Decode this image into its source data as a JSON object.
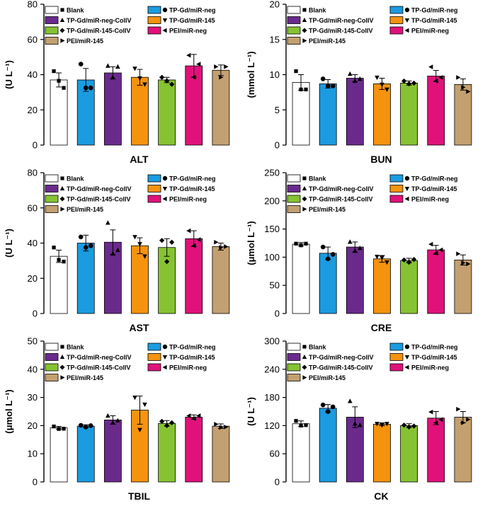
{
  "series_colors": {
    "Blank": "#ffffff",
    "TP-Gd/miR-neg": "#1b9be0",
    "TP-Gd/miR-neg-CollV": "#6a2a8c",
    "TP-Gd/miR-145": "#f5930f",
    "TP-Gd/miR-145-CollV": "#86c332",
    "PEI/miR-neg": "#e0127a",
    "PEI/miR-145": "#c4a070"
  },
  "legend_order": [
    "Blank",
    "TP-Gd/miR-neg-CollV",
    "TP-Gd/miR-145-CollV",
    "PEI/miR-145",
    "TP-Gd/miR-neg",
    "TP-Gd/miR-145",
    "PEI/miR-neg"
  ],
  "legend_labels": {
    "Blank": "Blank",
    "TP-Gd/miR-neg": "TP-Gd/miR-neg",
    "TP-Gd/miR-neg-CollV": "TP-Gd/miR-neg-CollV",
    "TP-Gd/miR-145": "TP-Gd/miR-145",
    "TP-Gd/miR-145-CollV": "TP-Gd/miR-145-CollV",
    "PEI/miR-neg": "PEI/miR-neg",
    "PEI/miR-145": "PEI/miR-145"
  },
  "chart_data": [
    {
      "type": "bar",
      "xlabel": "ALT",
      "ylabel": "(U L⁻¹)",
      "ylim": [
        0,
        80
      ],
      "yticks": [
        0,
        20,
        40,
        60,
        80
      ],
      "categories": [
        "Blank",
        "TP-Gd/miR-neg",
        "TP-Gd/miR-neg-CollV",
        "TP-Gd/miR-145",
        "TP-Gd/miR-145-CollV",
        "PEI/miR-neg",
        "PEI/miR-145"
      ],
      "values": [
        37,
        37,
        41,
        38.5,
        37,
        45,
        42.5
      ],
      "errors": [
        4,
        6.5,
        3.5,
        4.5,
        1.5,
        6.5,
        3
      ],
      "points": [
        [
          42,
          36.5,
          32.5
        ],
        [
          46,
          32.5,
          32.5
        ],
        [
          45,
          38.5,
          44.5
        ],
        [
          43.5,
          38,
          34.5
        ],
        [
          38.5,
          36.5,
          34.5
        ],
        [
          51,
          38.5,
          46
        ],
        [
          44.5,
          38.5,
          44.5
        ]
      ]
    },
    {
      "type": "bar",
      "xlabel": "BUN",
      "ylabel": "(mmol L⁻¹)",
      "ylim": [
        0,
        20
      ],
      "yticks": [
        0,
        5,
        10,
        15,
        20
      ],
      "categories": [
        "Blank",
        "TP-Gd/miR-neg",
        "TP-Gd/miR-neg-CollV",
        "TP-Gd/miR-145",
        "TP-Gd/miR-145-CollV",
        "PEI/miR-neg",
        "PEI/miR-145"
      ],
      "values": [
        8.9,
        8.7,
        9.5,
        8.7,
        8.8,
        9.8,
        8.6
      ],
      "errors": [
        1.1,
        0.6,
        0.5,
        0.8,
        0.3,
        0.8,
        0.8
      ],
      "points": [
        [
          10.5,
          7.9,
          7.9
        ],
        [
          9.4,
          8.4,
          8.4
        ],
        [
          10.1,
          9.1,
          9.4
        ],
        [
          9.6,
          8.6,
          7.9
        ],
        [
          9.1,
          8.7,
          8.8
        ],
        [
          11.1,
          9.1,
          9.6
        ],
        [
          9.6,
          8.2,
          7.6
        ]
      ]
    },
    {
      "type": "bar",
      "xlabel": "AST",
      "ylabel": "(U L⁻¹)",
      "ylim": [
        0,
        80
      ],
      "yticks": [
        0,
        20,
        40,
        60,
        80
      ],
      "categories": [
        "Blank",
        "TP-Gd/miR-neg",
        "TP-Gd/miR-neg-CollV",
        "TP-Gd/miR-145",
        "TP-Gd/miR-145-CollV",
        "PEI/miR-neg",
        "PEI/miR-145"
      ],
      "values": [
        32.5,
        40,
        40.5,
        38.5,
        37.5,
        42.5,
        38
      ],
      "errors": [
        3.5,
        4.5,
        7,
        4.5,
        5,
        4.5,
        2
      ],
      "points": [
        [
          37.5,
          30.5,
          29.5
        ],
        [
          43.5,
          37.5,
          38.5
        ],
        [
          51.5,
          34,
          36
        ],
        [
          43.5,
          39.5,
          32.5
        ],
        [
          41.5,
          29.5,
          40.5
        ],
        [
          47,
          38.5,
          42
        ],
        [
          40.5,
          37.5,
          38
        ]
      ]
    },
    {
      "type": "bar",
      "xlabel": "CRE",
      "ylabel": "(μmol L⁻¹)",
      "ylim": [
        0,
        250
      ],
      "yticks": [
        0,
        50,
        100,
        150,
        200,
        250
      ],
      "categories": [
        "Blank",
        "TP-Gd/miR-neg",
        "TP-Gd/miR-neg-CollV",
        "TP-Gd/miR-145",
        "TP-Gd/miR-145-CollV",
        "PEI/miR-neg",
        "PEI/miR-145"
      ],
      "values": [
        123,
        107,
        118,
        97,
        94,
        113,
        95
      ],
      "errors": [
        3,
        11,
        9,
        6,
        4,
        8,
        9
      ],
      "points": [
        [
          124,
          121,
          124
        ],
        [
          118,
          97,
          105
        ],
        [
          127,
          111,
          116
        ],
        [
          101,
          99,
          91
        ],
        [
          95,
          91,
          96
        ],
        [
          123,
          107,
          113
        ],
        [
          106,
          90,
          88
        ]
      ]
    },
    {
      "type": "bar",
      "xlabel": "TBIL",
      "ylabel": "(μmol L⁻¹)",
      "ylim": [
        0,
        50
      ],
      "yticks": [
        0,
        10,
        20,
        30,
        40,
        50
      ],
      "categories": [
        "Blank",
        "TP-Gd/miR-neg",
        "TP-Gd/miR-neg-CollV",
        "TP-Gd/miR-145",
        "TP-Gd/miR-145-CollV",
        "PEI/miR-neg",
        "PEI/miR-145"
      ],
      "values": [
        19.2,
        19.8,
        22,
        25.5,
        20.8,
        23,
        19.8
      ],
      "errors": [
        0.5,
        0.5,
        1.5,
        5,
        1,
        0.8,
        0.8
      ],
      "points": [
        [
          19.7,
          18.8,
          18.9
        ],
        [
          20.1,
          19.5,
          20
        ],
        [
          23.5,
          21,
          21.8
        ],
        [
          30,
          18.5,
          27.5
        ],
        [
          21.5,
          20,
          21
        ],
        [
          23.5,
          22.5,
          23.5
        ],
        [
          20.5,
          19.3,
          19.5
        ]
      ]
    },
    {
      "type": "bar",
      "xlabel": "CK",
      "ylabel": "(U L⁻¹)",
      "ylim": [
        0,
        300
      ],
      "yticks": [
        0,
        60,
        120,
        180,
        240,
        300
      ],
      "categories": [
        "Blank",
        "TP-Gd/miR-neg",
        "TP-Gd/miR-neg-CollV",
        "TP-Gd/miR-145",
        "TP-Gd/miR-145-CollV",
        "PEI/miR-neg",
        "PEI/miR-145"
      ],
      "values": [
        124,
        157,
        138,
        123,
        120,
        136,
        138
      ],
      "errors": [
        6,
        8,
        22,
        3,
        4,
        14,
        12
      ],
      "points": [
        [
          130,
          120,
          121
        ],
        [
          164,
          150,
          160
        ],
        [
          172,
          124,
          121
        ],
        [
          124,
          121,
          124
        ],
        [
          121,
          117,
          119
        ],
        [
          149,
          126,
          133
        ],
        [
          155,
          126,
          133
        ]
      ]
    }
  ]
}
